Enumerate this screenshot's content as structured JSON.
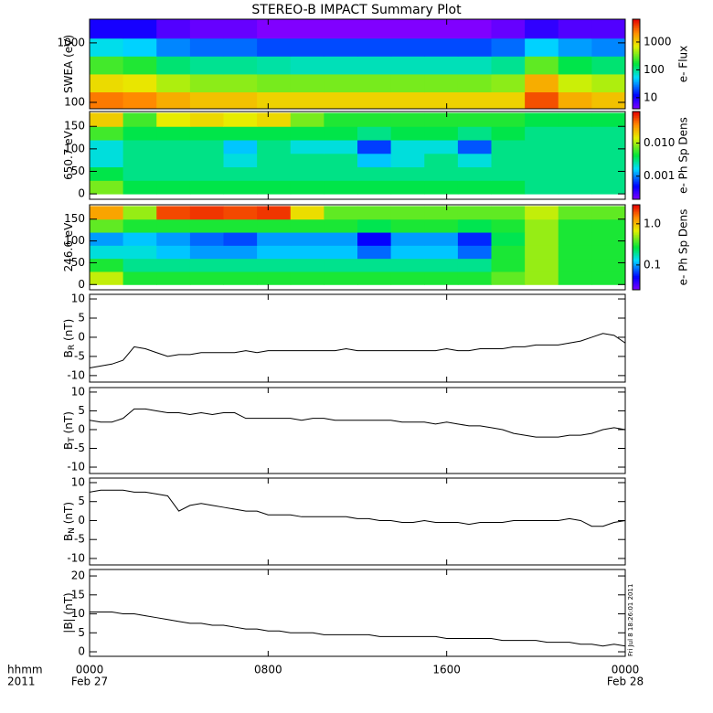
{
  "title": "STEREO-B IMPACT Summary Plot",
  "timestamp": "Fri Jul 8 18:26:01 2011",
  "x_axis": {
    "label": "hhmm",
    "year": "2011",
    "xlim": [
      0,
      24
    ],
    "xticks": [
      {
        "value": 0,
        "label": "0000"
      },
      {
        "value": 8,
        "label": "0800"
      },
      {
        "value": 16,
        "label": "1600"
      },
      {
        "value": 24,
        "label": "0000"
      }
    ],
    "dates": [
      {
        "value": 0,
        "label": "Feb 27"
      },
      {
        "value": 24,
        "label": "Feb 28"
      }
    ],
    "x": [
      0,
      0.5,
      1,
      1.5,
      2,
      2.5,
      3,
      3.5,
      4,
      4.5,
      5,
      5.5,
      6,
      6.5,
      7,
      7.5,
      8,
      8.5,
      9,
      9.5,
      10,
      10.5,
      11,
      11.5,
      12,
      12.5,
      13,
      13.5,
      14,
      14.5,
      15,
      15.5,
      16,
      16.5,
      17,
      17.5,
      18,
      18.5,
      19,
      19.5,
      20,
      20.5,
      21,
      21.5,
      22,
      22.5,
      23,
      23.5,
      24
    ]
  },
  "chart_data": [
    {
      "type": "heatmap",
      "ylabel": "SWEA (eV)",
      "log_y": true,
      "ylim": [
        78,
        2500
      ],
      "yticks": [
        100,
        1000
      ],
      "xbins": [
        0,
        1.5,
        3,
        4.5,
        6,
        7.5,
        9,
        10.5,
        12,
        13.5,
        15,
        16.5,
        18,
        19.5,
        21,
        22.5,
        24
      ],
      "ybins": [
        78,
        150,
        300,
        600,
        1200,
        2500
      ],
      "values": [
        [
          2500,
          2200,
          1500,
          1200,
          1200,
          1000,
          1000,
          1000,
          1000,
          1000,
          1000,
          1000,
          1000,
          3500,
          1500,
          1200
        ],
        [
          900,
          800,
          500,
          400,
          400,
          350,
          350,
          350,
          350,
          350,
          350,
          350,
          400,
          1500,
          600,
          500
        ],
        [
          250,
          200,
          120,
          100,
          100,
          90,
          80,
          80,
          80,
          80,
          80,
          80,
          100,
          300,
          150,
          120
        ],
        [
          60,
          50,
          30,
          25,
          25,
          20,
          20,
          20,
          20,
          20,
          20,
          20,
          25,
          50,
          35,
          30
        ],
        [
          10,
          10,
          6,
          5,
          5,
          4,
          4,
          4,
          4,
          4,
          4,
          4,
          5,
          8,
          6,
          6
        ]
      ],
      "colorbar": {
        "label": "e- Flux",
        "log": true,
        "lim": [
          4,
          6600
        ],
        "ticks": [
          10,
          100,
          1000
        ]
      }
    },
    {
      "type": "heatmap",
      "ylabel": "650.7 eV",
      "log_y": false,
      "ylim": [
        -12,
        183
      ],
      "yticks": [
        0,
        50,
        100,
        150
      ],
      "xbins": [
        0,
        1.5,
        3,
        4.5,
        6,
        7.5,
        9,
        10.5,
        12,
        13.5,
        15,
        16.5,
        18,
        19.5,
        21,
        22.5,
        24
      ],
      "ybins": [
        0,
        30,
        60,
        90,
        120,
        150,
        180
      ],
      "values": [
        [
          0.008,
          0.004,
          0.004,
          0.004,
          0.004,
          0.004,
          0.004,
          0.004,
          0.004,
          0.004,
          0.004,
          0.004,
          0.004,
          0.003,
          0.003,
          0.003
        ],
        [
          0.004,
          0.003,
          0.003,
          0.003,
          0.003,
          0.003,
          0.003,
          0.003,
          0.003,
          0.003,
          0.003,
          0.003,
          0.003,
          0.003,
          0.003,
          0.003
        ],
        [
          0.002,
          0.003,
          0.003,
          0.003,
          0.002,
          0.003,
          0.003,
          0.003,
          0.0015,
          0.002,
          0.003,
          0.002,
          0.003,
          0.003,
          0.003,
          0.003
        ],
        [
          0.002,
          0.003,
          0.003,
          0.003,
          0.0015,
          0.003,
          0.002,
          0.002,
          0.0007,
          0.002,
          0.002,
          0.0008,
          0.003,
          0.003,
          0.003,
          0.003
        ],
        [
          0.006,
          0.004,
          0.004,
          0.004,
          0.004,
          0.004,
          0.004,
          0.004,
          0.003,
          0.004,
          0.004,
          0.003,
          0.004,
          0.003,
          0.003,
          0.003
        ],
        [
          0.02,
          0.006,
          0.015,
          0.018,
          0.015,
          0.018,
          0.008,
          0.005,
          0.005,
          0.005,
          0.005,
          0.005,
          0.005,
          0.004,
          0.004,
          0.004
        ]
      ],
      "colorbar": {
        "label": "e- Ph Sp Dens",
        "log": true,
        "lim": [
          0.0002,
          0.09
        ],
        "ticks": [
          0.001,
          {
            "value": 0.01,
            "label": "0.010"
          }
        ]
      }
    },
    {
      "type": "heatmap",
      "ylabel": "246.6 eV",
      "log_y": false,
      "ylim": [
        -12,
        183
      ],
      "yticks": [
        0,
        50,
        100,
        150
      ],
      "xbins": [
        0,
        1.5,
        3,
        4.5,
        6,
        7.5,
        9,
        10.5,
        12,
        13.5,
        15,
        16.5,
        18,
        19.5,
        21,
        22.5,
        24
      ],
      "ybins": [
        0,
        30,
        60,
        90,
        120,
        150,
        180
      ],
      "values": [
        [
          0.6,
          0.3,
          0.3,
          0.3,
          0.3,
          0.3,
          0.3,
          0.3,
          0.3,
          0.3,
          0.3,
          0.3,
          0.4,
          0.5,
          0.3,
          0.3
        ],
        [
          0.3,
          0.2,
          0.2,
          0.2,
          0.2,
          0.2,
          0.2,
          0.2,
          0.2,
          0.2,
          0.2,
          0.2,
          0.3,
          0.5,
          0.3,
          0.3
        ],
        [
          0.15,
          0.15,
          0.12,
          0.1,
          0.1,
          0.12,
          0.12,
          0.12,
          0.08,
          0.12,
          0.12,
          0.08,
          0.3,
          0.5,
          0.3,
          0.3
        ],
        [
          0.1,
          0.12,
          0.1,
          0.08,
          0.07,
          0.1,
          0.1,
          0.1,
          0.05,
          0.1,
          0.1,
          0.06,
          0.25,
          0.5,
          0.3,
          0.3
        ],
        [
          0.4,
          0.3,
          0.3,
          0.3,
          0.3,
          0.3,
          0.3,
          0.3,
          0.25,
          0.3,
          0.3,
          0.25,
          0.3,
          0.5,
          0.3,
          0.3
        ],
        [
          1.2,
          0.5,
          2.0,
          2.2,
          2.0,
          2.2,
          0.8,
          0.4,
          0.4,
          0.4,
          0.4,
          0.4,
          0.4,
          0.6,
          0.4,
          0.4
        ]
      ],
      "colorbar": {
        "label": "e- Ph Sp Dens",
        "log": true,
        "lim": [
          0.025,
          2.9
        ],
        "ticks": [
          0.1,
          {
            "value": 1,
            "label": "1.0"
          }
        ]
      }
    },
    {
      "type": "line",
      "ylabel": "B",
      "ylabel_sub": "R",
      "ylabel_unit": "(nT)",
      "color": "#000000",
      "ylim": [
        -11.7,
        11.2
      ],
      "yticks": [
        -10,
        -5,
        0,
        5,
        10
      ],
      "values": [
        -8,
        -7.5,
        -7,
        -6,
        -2.5,
        -3,
        -4,
        -5,
        -4.5,
        -4.5,
        -4,
        -4,
        -4,
        -4,
        -3.5,
        -4,
        -3.5,
        -3.5,
        -3.5,
        -3.5,
        -3.5,
        -3.5,
        -3.5,
        -3,
        -3.5,
        -3.5,
        -3.5,
        -3.5,
        -3.5,
        -3.5,
        -3.5,
        -3.5,
        -3,
        -3.5,
        -3.5,
        -3,
        -3,
        -3,
        -2.5,
        -2.5,
        -2,
        -2,
        -2,
        -1.5,
        -1,
        0,
        1,
        0.5,
        -1.5
      ]
    },
    {
      "type": "line",
      "ylabel": "B",
      "ylabel_sub": "T",
      "ylabel_unit": "(nT)",
      "color": "#000000",
      "ylim": [
        -11.7,
        11.2
      ],
      "yticks": [
        -10,
        -5,
        0,
        5,
        10
      ],
      "values": [
        2.5,
        2,
        2,
        3,
        5.5,
        5.5,
        5,
        4.5,
        4.5,
        4,
        4.5,
        4,
        4.5,
        4.5,
        3,
        3,
        3,
        3,
        3,
        2.5,
        3,
        3,
        2.5,
        2.5,
        2.5,
        2.5,
        2.5,
        2.5,
        2,
        2,
        2,
        1.5,
        2,
        1.5,
        1,
        1,
        0.5,
        0,
        -1,
        -1.5,
        -2,
        -2,
        -2,
        -1.5,
        -1.5,
        -1,
        0,
        0.5,
        0
      ]
    },
    {
      "type": "line",
      "ylabel": "B",
      "ylabel_sub": "N",
      "ylabel_unit": "(nT)",
      "color": "#000000",
      "ylim": [
        -11.7,
        11.2
      ],
      "yticks": [
        -10,
        -5,
        0,
        5,
        10
      ],
      "values": [
        7.5,
        8,
        8,
        8,
        7.5,
        7.5,
        7,
        6.5,
        2.5,
        4,
        4.5,
        4,
        3.5,
        3,
        2.5,
        2.5,
        1.5,
        1.5,
        1.5,
        1,
        1,
        1,
        1,
        1,
        0.5,
        0.5,
        0,
        0,
        -0.5,
        -0.5,
        0,
        -0.5,
        -0.5,
        -0.5,
        -1,
        -0.5,
        -0.5,
        -0.5,
        0,
        0,
        0,
        0,
        0,
        0.5,
        0,
        -1.5,
        -1.5,
        -0.5,
        0
      ]
    },
    {
      "type": "line",
      "ylabel": "|B| (nT)",
      "color": "#000000",
      "ylim": [
        -1.2,
        21.7
      ],
      "yticks": [
        0,
        5,
        10,
        15,
        20
      ],
      "values": [
        10.5,
        10.5,
        10.5,
        10,
        10,
        9.5,
        9,
        8.5,
        8,
        7.5,
        7.5,
        7,
        7,
        6.5,
        6,
        6,
        5.5,
        5.5,
        5,
        5,
        5,
        4.5,
        4.5,
        4.5,
        4.5,
        4.5,
        4,
        4,
        4,
        4,
        4,
        4,
        3.5,
        3.5,
        3.5,
        3.5,
        3.5,
        3,
        3,
        3,
        3,
        2.5,
        2.5,
        2.5,
        2,
        2,
        1.5,
        2,
        1.5
      ]
    }
  ]
}
